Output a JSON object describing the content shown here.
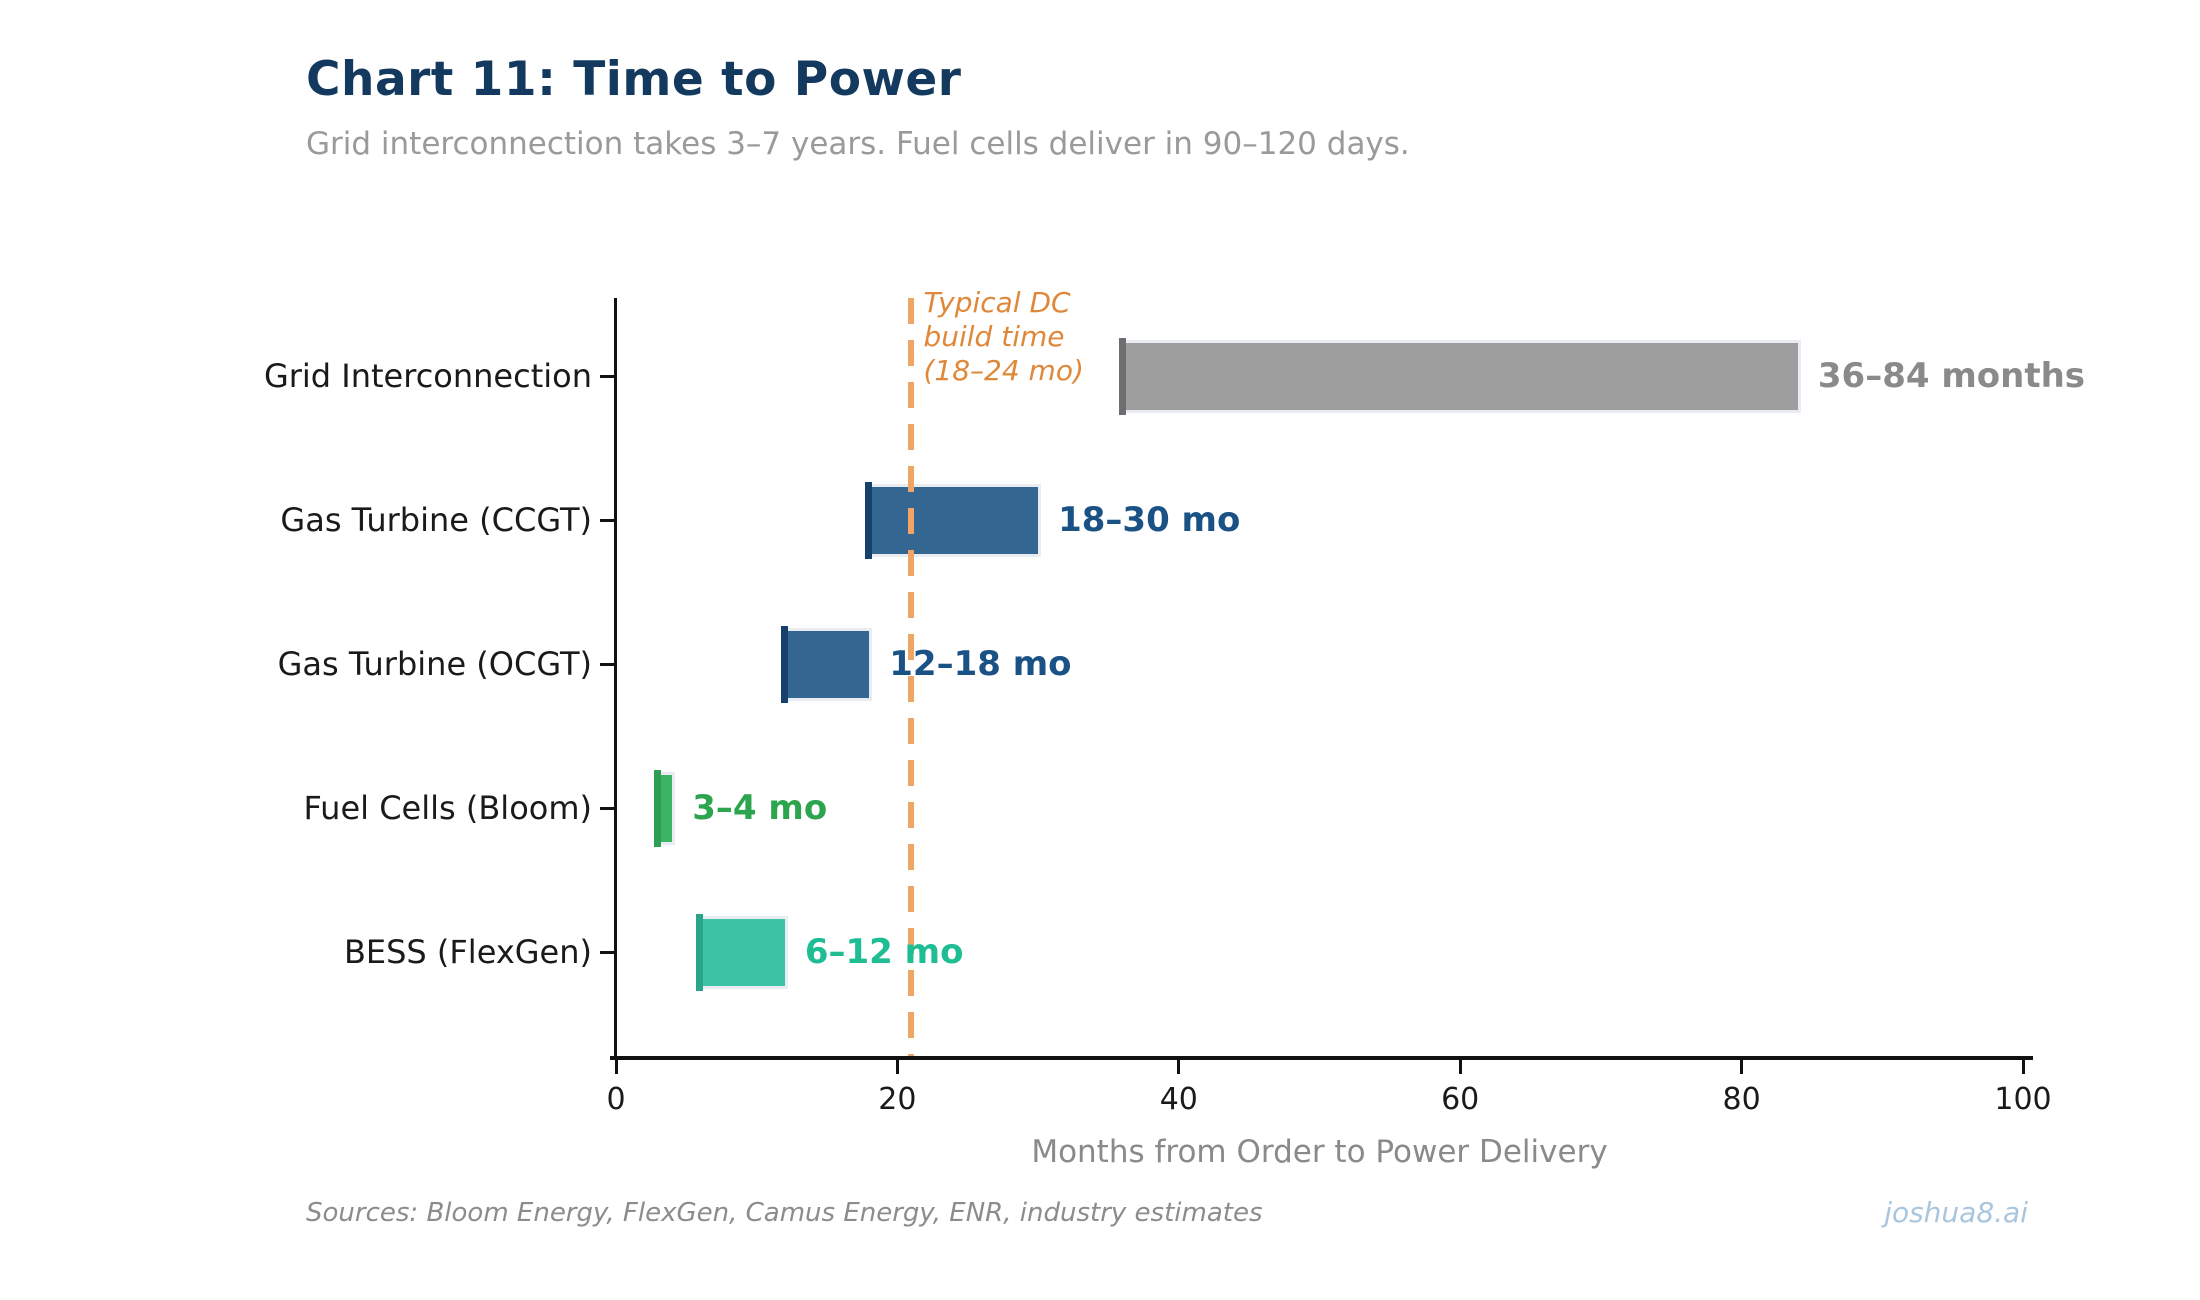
{
  "header": {
    "title": "Chart 11: Time to Power",
    "subtitle": "Grid interconnection takes 3–7 years. Fuel cells deliver in 90–120 days."
  },
  "footer": {
    "sources": "Sources: Bloom Energy, FlexGen, Camus Energy, ENR, industry estimates",
    "brand": "joshua8.ai"
  },
  "chart_data": {
    "type": "bar",
    "orientation": "horizontal",
    "title": "Chart 11: Time to Power",
    "subtitle": "Grid interconnection takes 3–7 years. Fuel cells deliver in 90–120 days.",
    "xlabel": "Months from Order to Power Delivery",
    "ylabel": "",
    "xlim": [
      0,
      100
    ],
    "xticks": [
      0,
      20,
      40,
      60,
      80,
      100
    ],
    "grid": false,
    "legend": "none",
    "categories": [
      "Grid Interconnection",
      "Gas Turbine (CCGT)",
      "Gas Turbine (OCGT)",
      "Fuel Cells (Bloom)",
      "BESS (FlexGen)"
    ],
    "bars": [
      {
        "category": "Grid Interconnection",
        "start": 36,
        "end": 84,
        "value_label": "36–84 months",
        "bar_color": "#9E9E9E",
        "marker_color": "#6E6E6E",
        "label_color": "#8A8A8A"
      },
      {
        "category": "Gas Turbine (CCGT)",
        "start": 18,
        "end": 30,
        "value_label": "18–30 mo",
        "bar_color": "#336691",
        "marker_color": "#17406B",
        "label_color": "#1A5286"
      },
      {
        "category": "Gas Turbine (OCGT)",
        "start": 12,
        "end": 18,
        "value_label": "12–18 mo",
        "bar_color": "#336691",
        "marker_color": "#17406B",
        "label_color": "#1A5286"
      },
      {
        "category": "Fuel Cells (Bloom)",
        "start": 3,
        "end": 4,
        "value_label": "3–4 mo",
        "bar_color": "#3CB464",
        "marker_color": "#2E9E52",
        "label_color": "#2DA44E"
      },
      {
        "category": "BESS (FlexGen)",
        "start": 6,
        "end": 12,
        "value_label": "6–12 mo",
        "bar_color": "#3EC4A5",
        "marker_color": "#2AA58A",
        "label_color": "#1EBD94"
      }
    ],
    "annotation": {
      "text": "Typical DC\nbuild time\n(18–24 mo)",
      "x_months": 21,
      "text_color": "#E0883A",
      "line_color": "#F0A566",
      "line_style": "dashed"
    },
    "colors": {
      "title": "#14395F",
      "subtitle": "#9A9A9A",
      "axis": "#111111",
      "xlabel": "#8A8A8A",
      "bar_edge": "#E9ECF3"
    }
  }
}
